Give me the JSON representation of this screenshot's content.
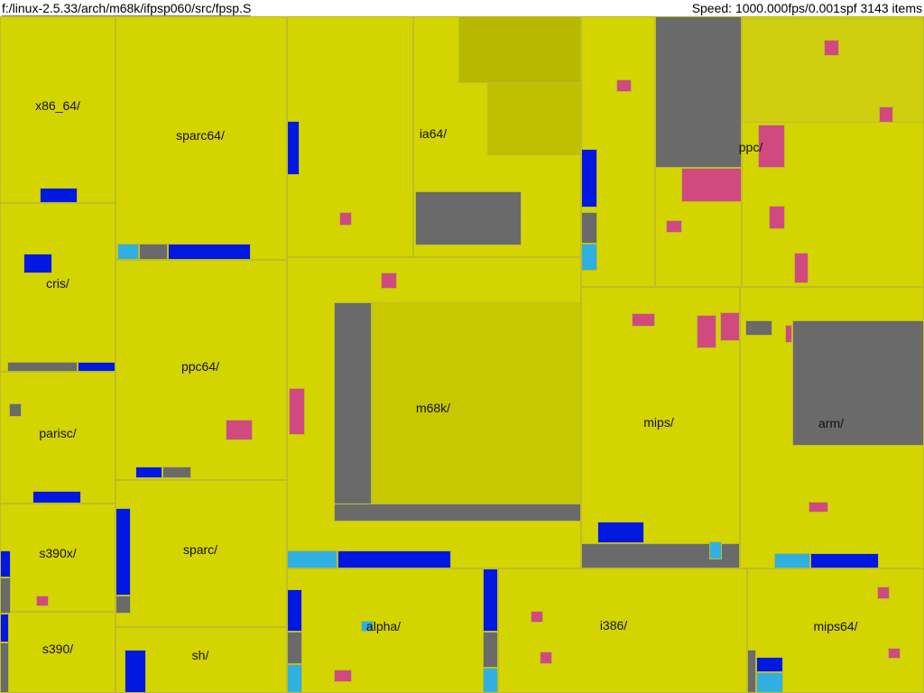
{
  "path_bar": {
    "segments": [
      "f:/linux-2.5.33",
      "/arch",
      "/m68k",
      "/ifpsp060",
      "/src",
      "/fpsp.S"
    ]
  },
  "status": "Speed: 1000.000fps/0.001spf 3143 items",
  "treemap": {
    "labels": [
      "x86_64/",
      "sparc64/",
      "ia64/",
      "ppc/",
      "cris/",
      "ppc64/",
      "m68k/",
      "mips/",
      "arm/",
      "parisc/",
      "s390x/",
      "sparc/",
      "s390/",
      "sh/",
      "alpha/",
      "i386/",
      "mips64/"
    ]
  }
}
